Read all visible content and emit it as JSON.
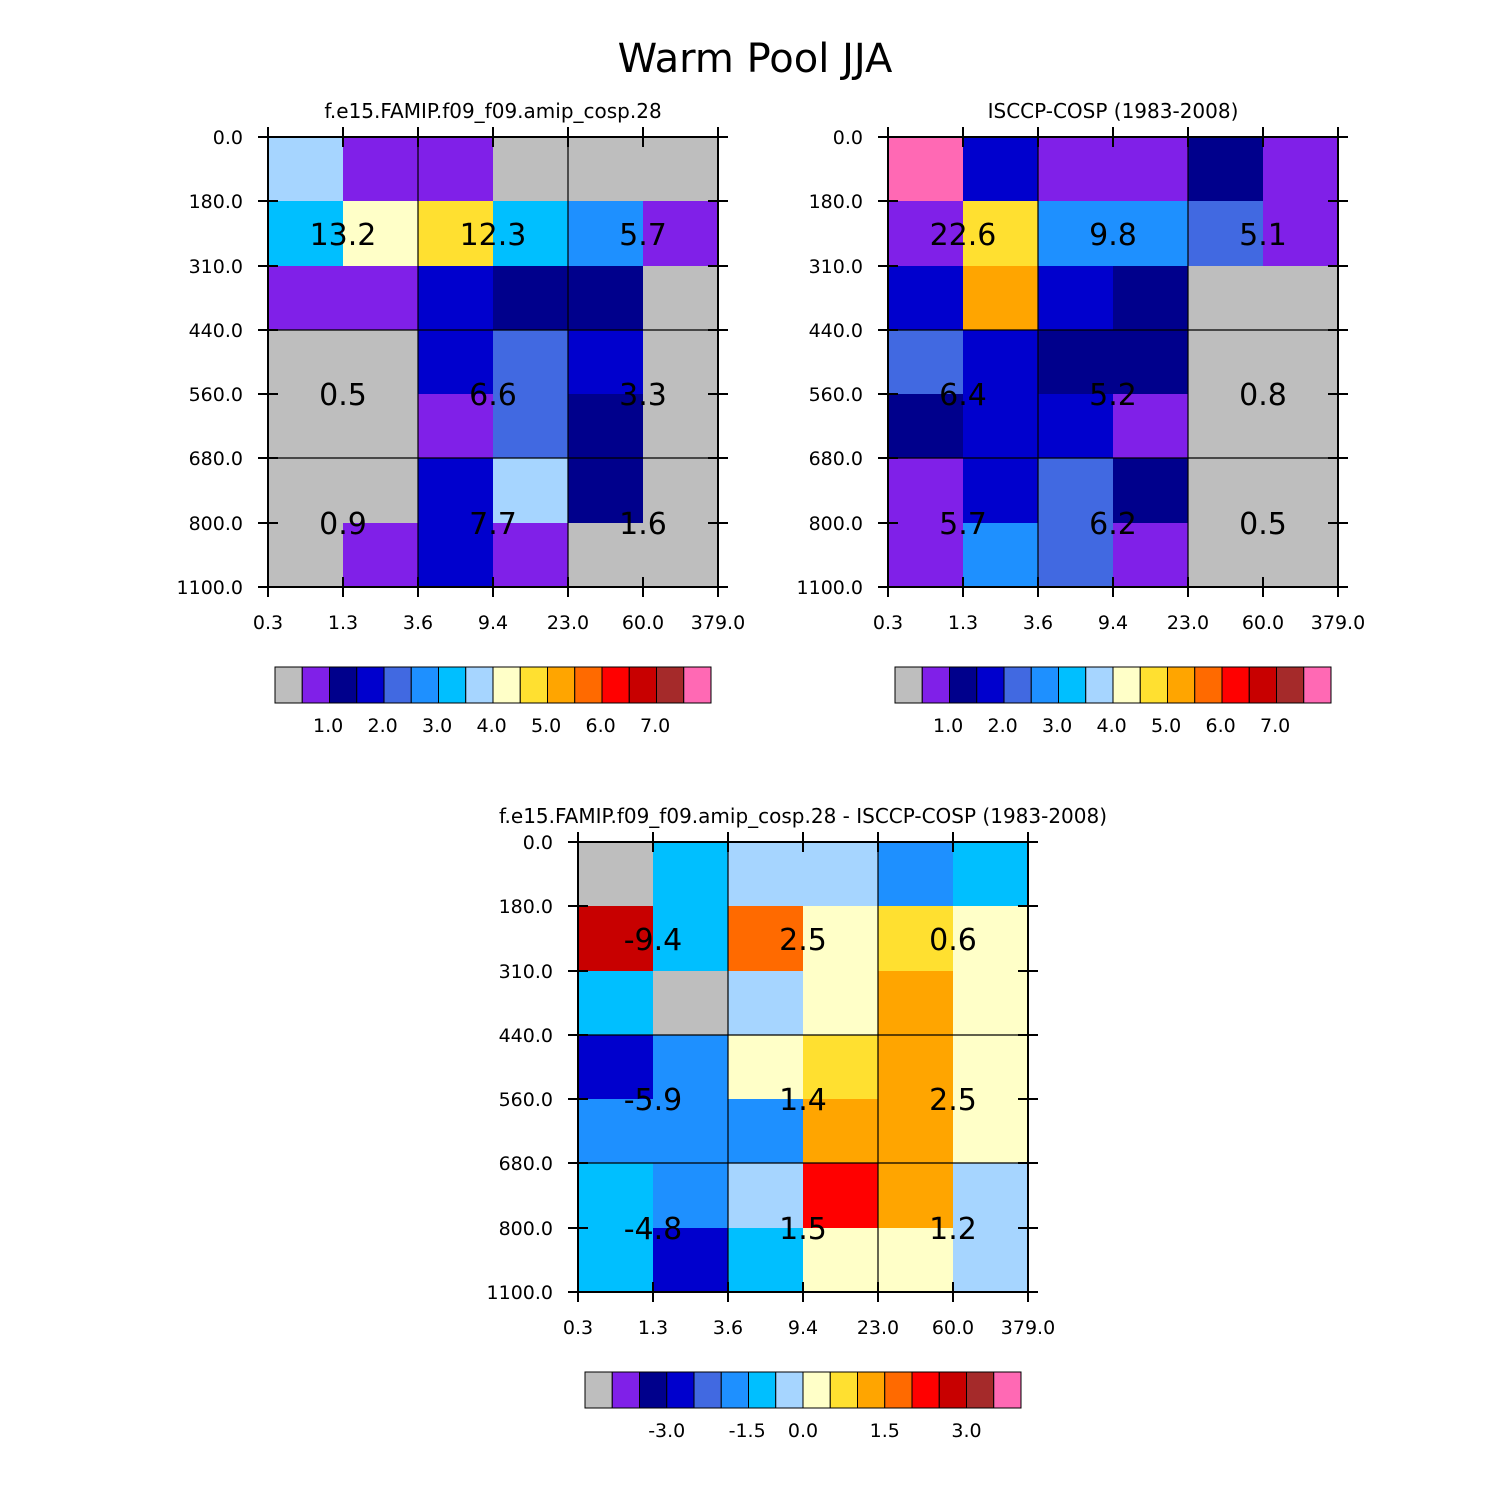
{
  "page_title": "Warm Pool JJA",
  "palette": {
    "gray": "#bebebe",
    "violet": "#8020e8",
    "navy": "#00008c",
    "blue": "#0000cd",
    "royal": "#4169e1",
    "dodger": "#1e90ff",
    "deepsky": "#00bfff",
    "lightblue": "#a6d5ff",
    "cream": "#ffffc8",
    "gold": "#ffe030",
    "orange": "#ffa500",
    "darkorange": "#ff6a00",
    "red": "#ff0000",
    "crimson": "#c80000",
    "brown": "#a52a2a",
    "pink": "#ff69b4"
  },
  "colorbar_order": [
    "gray",
    "violet",
    "navy",
    "blue",
    "royal",
    "dodger",
    "deepsky",
    "lightblue",
    "cream",
    "gold",
    "orange",
    "darkorange",
    "red",
    "crimson",
    "brown",
    "pink"
  ],
  "chart_data": [
    {
      "type": "heatmap",
      "title": "f.e15.FAMIP.f09_f09.amip_cosp.28",
      "x_ticks": [
        "0.3",
        "1.3",
        "3.6",
        "9.4",
        "23.0",
        "60.0",
        "379.0"
      ],
      "y_ticks": [
        "0.0",
        "180.0",
        "310.0",
        "440.0",
        "560.0",
        "680.0",
        "800.0",
        "1100.0"
      ],
      "cells": [
        [
          "lightblue",
          "violet",
          "violet",
          "gray",
          "gray",
          "gray"
        ],
        [
          "deepsky",
          "cream",
          "gold",
          "deepsky",
          "dodger",
          "violet"
        ],
        [
          "violet",
          "violet",
          "blue",
          "navy",
          "navy",
          "gray"
        ],
        [
          "gray",
          "gray",
          "blue",
          "royal",
          "blue",
          "gray"
        ],
        [
          "gray",
          "gray",
          "violet",
          "royal",
          "navy",
          "gray"
        ],
        [
          "gray",
          "gray",
          "blue",
          "lightblue",
          "navy",
          "gray"
        ],
        [
          "gray",
          "violet",
          "blue",
          "violet",
          "gray",
          "gray"
        ]
      ],
      "labels": [
        [
          "13.2",
          "12.3",
          "5.7"
        ],
        [
          "0.5",
          "6.6",
          "3.3"
        ],
        [
          "0.9",
          "7.7",
          "1.6"
        ]
      ],
      "colorbar_labels": [
        "1.0",
        "2.0",
        "3.0",
        "4.0",
        "5.0",
        "6.0",
        "7.0"
      ]
    },
    {
      "type": "heatmap",
      "title": "ISCCP-COSP (1983-2008)",
      "x_ticks": [
        "0.3",
        "1.3",
        "3.6",
        "9.4",
        "23.0",
        "60.0",
        "379.0"
      ],
      "y_ticks": [
        "0.0",
        "180.0",
        "310.0",
        "440.0",
        "560.0",
        "680.0",
        "800.0",
        "1100.0"
      ],
      "cells": [
        [
          "pink",
          "blue",
          "violet",
          "violet",
          "navy",
          "violet"
        ],
        [
          "violet",
          "gold",
          "dodger",
          "dodger",
          "royal",
          "violet"
        ],
        [
          "blue",
          "orange",
          "blue",
          "navy",
          "gray",
          "gray"
        ],
        [
          "royal",
          "blue",
          "navy",
          "navy",
          "gray",
          "gray"
        ],
        [
          "navy",
          "blue",
          "blue",
          "violet",
          "gray",
          "gray"
        ],
        [
          "violet",
          "blue",
          "royal",
          "navy",
          "gray",
          "gray"
        ],
        [
          "violet",
          "dodger",
          "royal",
          "violet",
          "gray",
          "gray"
        ]
      ],
      "labels": [
        [
          "22.6",
          "9.8",
          "5.1"
        ],
        [
          "6.4",
          "5.2",
          "0.8"
        ],
        [
          "5.7",
          "6.2",
          "0.5"
        ]
      ],
      "colorbar_labels": [
        "1.0",
        "2.0",
        "3.0",
        "4.0",
        "5.0",
        "6.0",
        "7.0"
      ]
    },
    {
      "type": "heatmap",
      "title": "f.e15.FAMIP.f09_f09.amip_cosp.28 - ISCCP-COSP (1983-2008)",
      "x_ticks": [
        "0.3",
        "1.3",
        "3.6",
        "9.4",
        "23.0",
        "60.0",
        "379.0"
      ],
      "y_ticks": [
        "0.0",
        "180.0",
        "310.0",
        "440.0",
        "560.0",
        "680.0",
        "800.0",
        "1100.0"
      ],
      "cells": [
        [
          "gray",
          "deepsky",
          "lightblue",
          "lightblue",
          "dodger",
          "deepsky"
        ],
        [
          "crimson",
          "deepsky",
          "darkorange",
          "cream",
          "gold",
          "cream"
        ],
        [
          "deepsky",
          "gray",
          "lightblue",
          "cream",
          "orange",
          "cream"
        ],
        [
          "blue",
          "dodger",
          "cream",
          "gold",
          "orange",
          "cream"
        ],
        [
          "dodger",
          "dodger",
          "dodger",
          "orange",
          "orange",
          "cream"
        ],
        [
          "deepsky",
          "dodger",
          "lightblue",
          "red",
          "orange",
          "lightblue"
        ],
        [
          "deepsky",
          "blue",
          "deepsky",
          "cream",
          "cream",
          "lightblue"
        ]
      ],
      "labels": [
        [
          "-9.4",
          "2.5",
          "0.6"
        ],
        [
          "-5.9",
          "1.4",
          "2.5"
        ],
        [
          "-4.8",
          "1.5",
          "1.2"
        ]
      ],
      "colorbar_labels": [
        "-3.0",
        "-1.5",
        "0.0",
        "1.5",
        "3.0"
      ]
    }
  ]
}
